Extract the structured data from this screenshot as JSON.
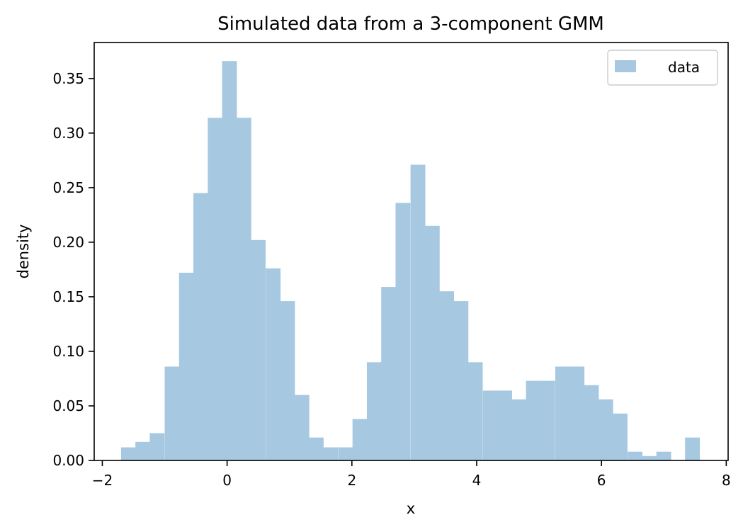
{
  "chart_data": {
    "type": "bar",
    "title": "Simulated data from a 3-component GMM",
    "xlabel": "x",
    "ylabel": "density",
    "xlim": [
      -2.13,
      8.03
    ],
    "ylim": [
      0,
      0.383
    ],
    "xticks": [
      -2,
      0,
      2,
      4,
      6,
      8
    ],
    "xtick_labels": [
      "−2",
      "0",
      "2",
      "4",
      "6",
      "8"
    ],
    "yticks": [
      0,
      0.05,
      0.1,
      0.15,
      0.2,
      0.25,
      0.3,
      0.35
    ],
    "ytick_labels": [
      "0.00",
      "0.05",
      "0.10",
      "0.15",
      "0.20",
      "0.25",
      "0.30",
      "0.35"
    ],
    "grid": false,
    "legend": {
      "position": "top-right",
      "entries": [
        "data"
      ]
    },
    "series": [
      {
        "name": "data",
        "color": "#a6c8e0",
        "bin_width": 0.2322,
        "bin_starts": [
          -1.7,
          -1.47,
          -1.24,
          -1.0,
          -0.77,
          -0.54,
          -0.31,
          -0.08,
          0.15,
          0.38,
          0.62,
          0.85,
          1.08,
          1.31,
          1.54,
          1.78,
          2.01,
          2.24,
          2.47,
          2.7,
          2.94,
          3.17,
          3.4,
          3.63,
          3.86,
          4.1,
          4.33,
          4.56,
          4.79,
          5.02,
          5.26,
          5.49,
          5.72,
          5.95,
          6.18,
          6.42,
          6.65,
          6.88,
          7.11,
          7.34
        ],
        "values": [
          0.012,
          0.017,
          0.025,
          0.086,
          0.172,
          0.245,
          0.314,
          0.366,
          0.314,
          0.202,
          0.176,
          0.146,
          0.06,
          0.021,
          0.012,
          0.012,
          0.038,
          0.09,
          0.159,
          0.236,
          0.271,
          0.215,
          0.155,
          0.146,
          0.09,
          0.064,
          0.064,
          0.056,
          0.073,
          0.073,
          0.086,
          0.086,
          0.069,
          0.056,
          0.043,
          0.008,
          0.004,
          0.008,
          0.0,
          0.021
        ]
      }
    ]
  }
}
